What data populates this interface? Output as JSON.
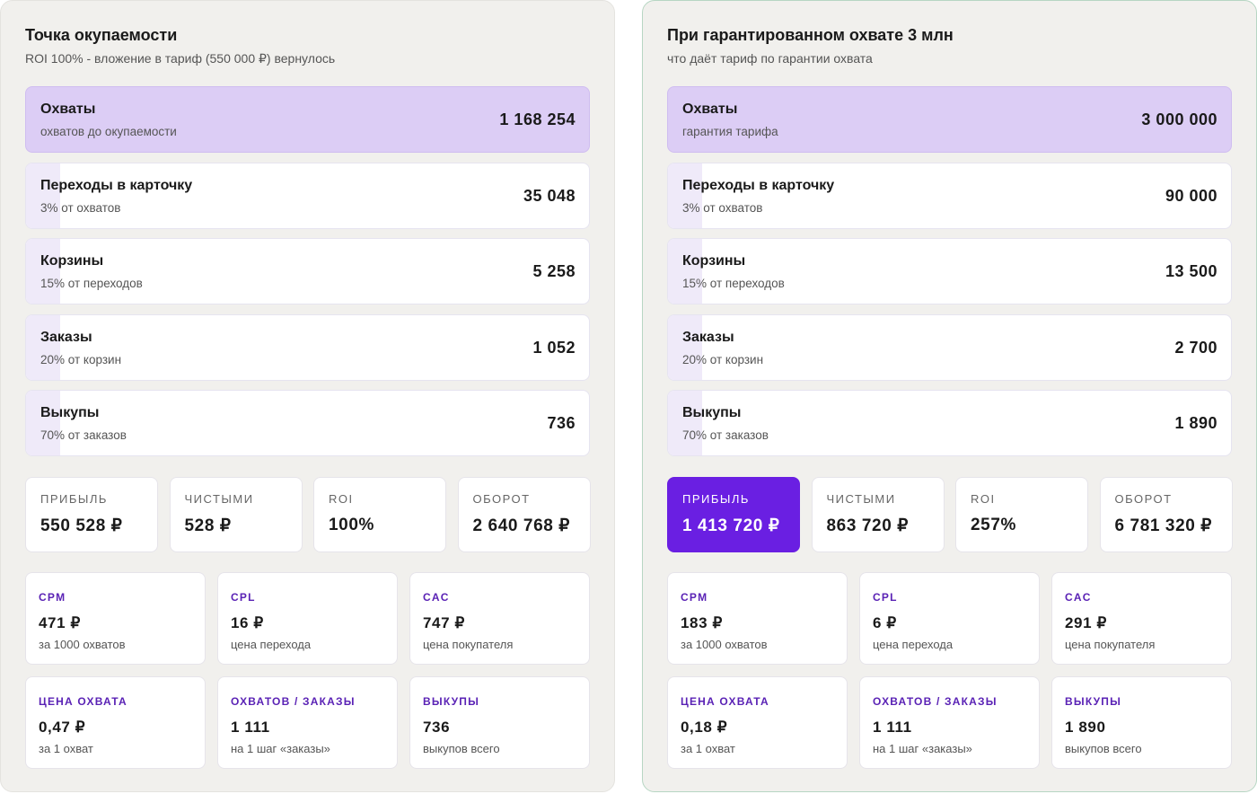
{
  "panels": [
    {
      "title": "Точка окупаемости",
      "subtitle": "ROI 100% - вложение в тариф (550 000 ₽) вернулось",
      "funnel": [
        {
          "label": "Охваты",
          "note": "охватов до окупаемости",
          "value": "1 168 254"
        },
        {
          "label": "Переходы в карточку",
          "note": "3% от охватов",
          "value": "35 048"
        },
        {
          "label": "Корзины",
          "note": "15% от переходов",
          "value": "5 258"
        },
        {
          "label": "Заказы",
          "note": "20% от корзин",
          "value": "1 052"
        },
        {
          "label": "Выкупы",
          "note": "70% от заказов",
          "value": "736"
        }
      ],
      "stats": [
        {
          "label": "ПРИБЫЛЬ",
          "value": "550 528 ₽"
        },
        {
          "label": "ЧИСТЫМИ",
          "value": "528 ₽"
        },
        {
          "label": "ROI",
          "value": "100%"
        },
        {
          "label": "ОБОРОТ",
          "value": "2 640 768 ₽"
        }
      ],
      "metrics": [
        {
          "label": "CPM",
          "value": "471 ₽",
          "note": "за 1000 охватов"
        },
        {
          "label": "CPL",
          "value": "16 ₽",
          "note": "цена перехода"
        },
        {
          "label": "CAC",
          "value": "747 ₽",
          "note": "цена покупателя"
        },
        {
          "label": "ЦЕНА ОХВАТА",
          "value": "0,47 ₽",
          "note": "за 1 охват"
        },
        {
          "label": "ОХВАТОВ / ЗАКАЗЫ",
          "value": "1 111",
          "note": "на 1 шаг «заказы»"
        },
        {
          "label": "ВЫКУПЫ",
          "value": "736",
          "note": "выкупов всего"
        }
      ]
    },
    {
      "title": "При гарантированном охвате 3 млн",
      "subtitle": "что даёт тариф по гарантии охвата",
      "funnel": [
        {
          "label": "Охваты",
          "note": "гарантия тарифа",
          "value": "3 000 000"
        },
        {
          "label": "Переходы в карточку",
          "note": "3% от охватов",
          "value": "90 000"
        },
        {
          "label": "Корзины",
          "note": "15% от переходов",
          "value": "13 500"
        },
        {
          "label": "Заказы",
          "note": "20% от корзин",
          "value": "2 700"
        },
        {
          "label": "Выкупы",
          "note": "70% от заказов",
          "value": "1 890"
        }
      ],
      "stats": [
        {
          "label": "ПРИБЫЛЬ",
          "value": "1 413 720 ₽"
        },
        {
          "label": "ЧИСТЫМИ",
          "value": "863 720 ₽"
        },
        {
          "label": "ROI",
          "value": "257%"
        },
        {
          "label": "ОБОРОТ",
          "value": "6 781 320 ₽"
        }
      ],
      "metrics": [
        {
          "label": "CPM",
          "value": "183 ₽",
          "note": "за 1000 охватов"
        },
        {
          "label": "CPL",
          "value": "6 ₽",
          "note": "цена перехода"
        },
        {
          "label": "CAC",
          "value": "291 ₽",
          "note": "цена покупателя"
        },
        {
          "label": "ЦЕНА ОХВАТА",
          "value": "0,18 ₽",
          "note": "за 1 охват"
        },
        {
          "label": "ОХВАТОВ / ЗАКАЗЫ",
          "value": "1 111",
          "note": "на 1 шаг «заказы»"
        },
        {
          "label": "ВЫКУПЫ",
          "value": "1 890",
          "note": "выкупов всего"
        }
      ]
    }
  ]
}
